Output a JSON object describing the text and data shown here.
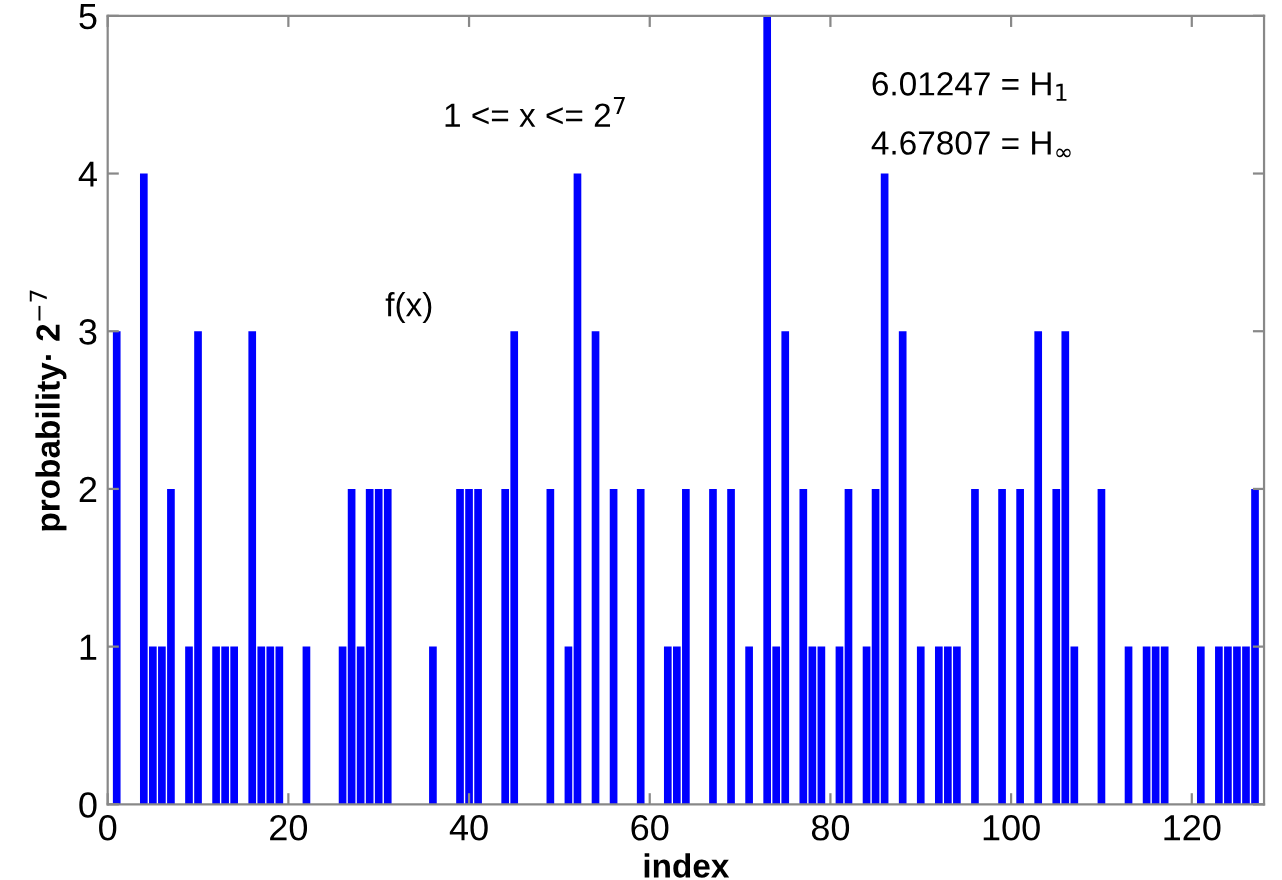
{
  "chart_data": {
    "type": "bar",
    "xlabel": "index",
    "ylabel": "probability· 2$^{−7}$",
    "annotations": [
      "1 <= x <= 2$^{7}$",
      "f(x)",
      "6.01247 = H$_{1}$",
      "4.67807 = H$_{∞}$"
    ],
    "x": [
      1,
      2,
      3,
      4,
      5,
      6,
      7,
      8,
      9,
      10,
      11,
      12,
      13,
      14,
      15,
      16,
      17,
      18,
      19,
      20,
      21,
      22,
      23,
      24,
      25,
      26,
      27,
      28,
      29,
      30,
      31,
      32,
      33,
      34,
      35,
      36,
      37,
      38,
      39,
      40,
      41,
      42,
      43,
      44,
      45,
      46,
      47,
      48,
      49,
      50,
      51,
      52,
      53,
      54,
      55,
      56,
      57,
      58,
      59,
      60,
      61,
      62,
      63,
      64,
      65,
      66,
      67,
      68,
      69,
      70,
      71,
      72,
      73,
      74,
      75,
      76,
      77,
      78,
      79,
      80,
      81,
      82,
      83,
      84,
      85,
      86,
      87,
      88,
      89,
      90,
      91,
      92,
      93,
      94,
      95,
      96,
      97,
      98,
      99,
      100,
      101,
      102,
      103,
      104,
      105,
      106,
      107,
      108,
      109,
      110,
      111,
      112,
      113,
      114,
      115,
      116,
      117,
      118,
      119,
      120,
      121,
      122,
      123,
      124,
      125,
      126,
      127,
      128
    ],
    "values": [
      3,
      0,
      0,
      4,
      1,
      1,
      2,
      0,
      1,
      3,
      0,
      1,
      1,
      1,
      0,
      3,
      1,
      1,
      1,
      0,
      0,
      1,
      0,
      0,
      0,
      1,
      2,
      1,
      2,
      2,
      2,
      0,
      0,
      0,
      0,
      1,
      0,
      0,
      2,
      2,
      2,
      0,
      0,
      2,
      3,
      0,
      0,
      0,
      2,
      0,
      1,
      4,
      0,
      3,
      0,
      2,
      0,
      0,
      2,
      0,
      0,
      1,
      1,
      2,
      0,
      0,
      2,
      0,
      2,
      0,
      1,
      0,
      5,
      1,
      3,
      0,
      2,
      1,
      1,
      0,
      1,
      2,
      0,
      1,
      2,
      4,
      0,
      3,
      0,
      1,
      0,
      1,
      1,
      1,
      0,
      2,
      0,
      0,
      2,
      0,
      2,
      0,
      3,
      0,
      2,
      3,
      1,
      0,
      0,
      2,
      0,
      0,
      1,
      0,
      1,
      1,
      1,
      0,
      0,
      0,
      1,
      0,
      1,
      1,
      1,
      1,
      2,
      0
    ],
    "color": "#0000ff",
    "xlim": [
      0,
      128
    ],
    "xticks": [
      0,
      20,
      40,
      60,
      80,
      100,
      120
    ],
    "ylim": [
      0,
      5
    ],
    "yticks": [
      0,
      1,
      2,
      3,
      4,
      5
    ],
    "grid": false,
    "legend": false
  }
}
